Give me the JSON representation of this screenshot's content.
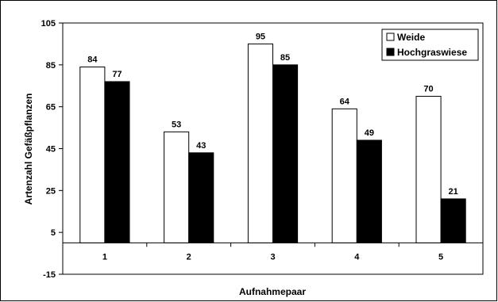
{
  "chart_data": {
    "type": "bar",
    "categories": [
      "1",
      "2",
      "3",
      "4",
      "5"
    ],
    "series": [
      {
        "name": "Weide",
        "values": [
          84,
          53,
          95,
          64,
          70
        ],
        "color": "#ffffff"
      },
      {
        "name": "Hochgraswiese",
        "values": [
          77,
          43,
          85,
          49,
          21
        ],
        "color": "#000000"
      }
    ],
    "xlabel": "Aufnahmepaar",
    "ylabel": "Artenzahl Gefäßpflanzen",
    "ylim": [
      -15,
      105
    ],
    "yticks": [
      105,
      85,
      65,
      45,
      25,
      5,
      -15
    ],
    "grid": false,
    "legend": "top-right",
    "data_labels": true
  }
}
